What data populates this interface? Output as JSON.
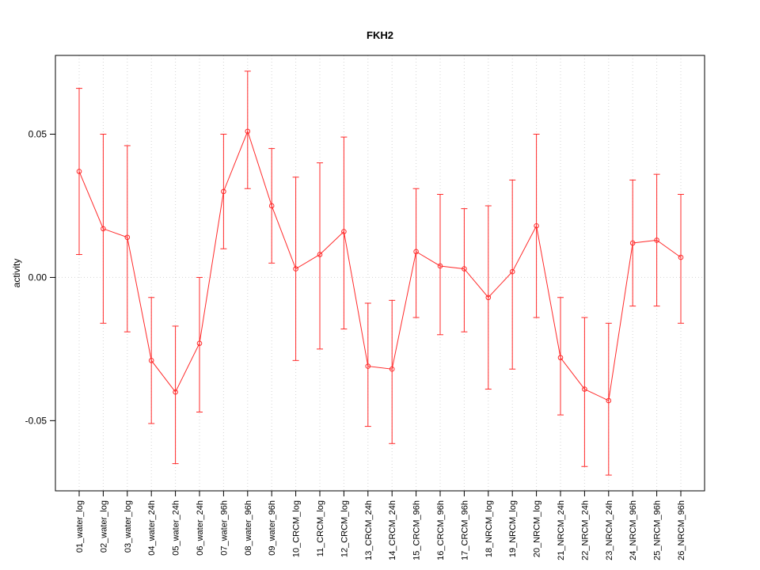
{
  "chart_data": {
    "type": "line",
    "title": "FKH2",
    "xlabel": "",
    "ylabel": "activity",
    "legend": "none",
    "grid": "dotted vertical line per category plus dotted zero line",
    "marker": "open-circle",
    "error_bars": true,
    "yticks": [
      -0.05,
      0,
      0.05
    ],
    "ylim": [
      -0.0745,
      0.0775
    ],
    "categories": [
      "01_water_log",
      "02_water_log",
      "03_water_log",
      "04_water_24h",
      "05_water_24h",
      "06_water_24h",
      "07_water_96h",
      "08_water_96h",
      "09_water_96h",
      "10_CRCM_log",
      "11_CRCM_log",
      "12_CRCM_log",
      "13_CRCM_24h",
      "14_CRCM_24h",
      "15_CRCM_96h",
      "16_CRCM_96h",
      "17_CRCM_96h",
      "18_NRCM_log",
      "19_NRCM_log",
      "20_NRCM_log",
      "21_NRCM_24h",
      "22_NRCM_24h",
      "23_NRCM_24h",
      "24_NRCM_96h",
      "25_NRCM_96h",
      "26_NRCM_96h"
    ],
    "series": [
      {
        "name": "activity",
        "means": [
          0.037,
          0.017,
          0.014,
          -0.029,
          -0.04,
          -0.023,
          0.03,
          0.051,
          0.025,
          0.003,
          0.008,
          0.016,
          -0.031,
          -0.032,
          0.009,
          0.004,
          0.003,
          -0.007,
          0.002,
          0.018,
          -0.028,
          -0.039,
          -0.043,
          0.012,
          0.013,
          0.007
        ],
        "upper": [
          0.066,
          0.05,
          0.046,
          -0.007,
          -0.017,
          0.0,
          0.05,
          0.072,
          0.045,
          0.035,
          0.04,
          0.049,
          -0.009,
          -0.008,
          0.031,
          0.029,
          0.024,
          0.025,
          0.034,
          0.05,
          -0.007,
          -0.014,
          -0.016,
          0.034,
          0.036,
          0.029
        ],
        "lower": [
          0.008,
          -0.016,
          -0.019,
          -0.051,
          -0.065,
          -0.047,
          0.01,
          0.031,
          0.005,
          -0.029,
          -0.025,
          -0.018,
          -0.052,
          -0.058,
          -0.014,
          -0.02,
          -0.019,
          -0.039,
          -0.032,
          -0.014,
          -0.048,
          -0.066,
          -0.069,
          -0.01,
          -0.01,
          -0.016
        ]
      }
    ],
    "colors": {
      "series": "#ff2a2a",
      "grid": "#d4d4d4",
      "axis": "#000000",
      "background": "#ffffff"
    }
  }
}
